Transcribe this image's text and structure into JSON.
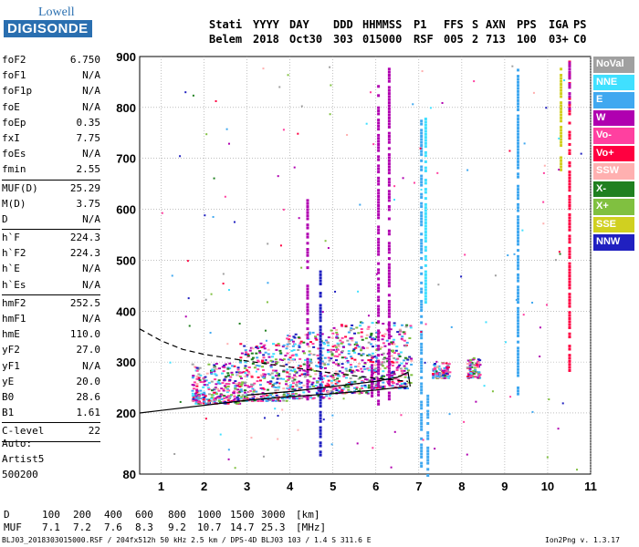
{
  "logo": {
    "top": "Lowell",
    "bottom": "DIGISONDE"
  },
  "header": {
    "labels": [
      "Stati",
      "YYYY",
      "DAY",
      "DDD",
      "HHMMSS",
      "P1",
      "FFS",
      "S",
      "AXN",
      "PPS",
      "IGA",
      "PS"
    ],
    "values": [
      "Belem",
      "2018",
      "Oct30",
      "303",
      "015000",
      "RSF",
      "005",
      "2",
      "713",
      "100",
      "03+",
      "C0"
    ]
  },
  "params_groups": [
    [
      [
        "foF2",
        "6.750"
      ],
      [
        "foF1",
        "N/A"
      ],
      [
        "foF1p",
        "N/A"
      ],
      [
        "foE",
        "N/A"
      ],
      [
        "foEp",
        "0.35"
      ],
      [
        "fxI",
        "7.75"
      ],
      [
        "foEs",
        "N/A"
      ],
      [
        "fmin",
        "2.55"
      ]
    ],
    [
      [
        "MUF(D)",
        "25.29"
      ],
      [
        "M(D)",
        "3.75"
      ],
      [
        "D",
        "N/A"
      ]
    ],
    [
      [
        "h`F",
        "224.3"
      ],
      [
        "h`F2",
        "224.3"
      ],
      [
        "h`E",
        "N/A"
      ],
      [
        "h`Es",
        "N/A"
      ]
    ],
    [
      [
        "hmF2",
        "252.5"
      ],
      [
        "hmF1",
        "N/A"
      ],
      [
        "hmE",
        "110.0"
      ],
      [
        "yF2",
        "27.0"
      ],
      [
        "yF1",
        "N/A"
      ],
      [
        "yE",
        "20.0"
      ],
      [
        "B0",
        "28.6"
      ],
      [
        "B1",
        "1.61"
      ]
    ],
    [
      [
        "C-level",
        "22"
      ]
    ]
  ],
  "auto": {
    "line1": "Auto:",
    "line2": "Artist5",
    "line3": "500200"
  },
  "legend": [
    {
      "label": "NoVal",
      "color": "#a0a0a0"
    },
    {
      "label": "NNE",
      "color": "#40e0ff"
    },
    {
      "label": "E",
      "color": "#40a8f0"
    },
    {
      "label": "W",
      "color": "#b000b0"
    },
    {
      "label": "Vo-",
      "color": "#ff40a0"
    },
    {
      "label": "Vo+",
      "color": "#ff0040"
    },
    {
      "label": "SSW",
      "color": "#ffb0b0"
    },
    {
      "label": "X-",
      "color": "#208020"
    },
    {
      "label": "X+",
      "color": "#80c040"
    },
    {
      "label": "SSE",
      "color": "#d0d020"
    },
    {
      "label": "NNW",
      "color": "#2020c0"
    }
  ],
  "muf_table": {
    "d_label": "D",
    "d_values": [
      "100",
      "200",
      "400",
      "600",
      "800",
      "1000",
      "1500",
      "3000"
    ],
    "d_unit": "[km]",
    "muf_label": "MUF",
    "muf_values": [
      "7.1",
      "7.2",
      "7.6",
      "8.3",
      "9.2",
      "10.7",
      "14.7",
      "25.3"
    ],
    "muf_unit": "[MHz]"
  },
  "footer": {
    "left": "BLJ03_2018303015000.RSF / 204fx512h 50 kHz 2.5 km / DPS-4D BLJ03 103 / 1.4 S 311.6 E",
    "right": "Ion2Png v. 1.3.17"
  },
  "chart_data": {
    "type": "scatter",
    "title": "",
    "xlabel": "",
    "ylabel": "",
    "xlim": [
      0.5,
      11
    ],
    "ylim": [
      80,
      900
    ],
    "x_ticks": [
      1,
      2,
      3,
      4,
      5,
      6,
      7,
      8,
      9,
      10,
      11
    ],
    "y_ticks": [
      80,
      200,
      300,
      400,
      500,
      600,
      700,
      800,
      900
    ],
    "grid": true,
    "legend_position": "right",
    "traces": [
      {
        "name": "trace-solid",
        "style": "solid",
        "points": [
          [
            0.5,
            200
          ],
          [
            1,
            205
          ],
          [
            2,
            215
          ],
          [
            3,
            225
          ],
          [
            4,
            232
          ],
          [
            5,
            238
          ],
          [
            6,
            245
          ],
          [
            6.75,
            252
          ]
        ]
      },
      {
        "name": "trace-dashed",
        "style": "dashed",
        "points": [
          [
            0.5,
            365
          ],
          [
            1,
            342
          ],
          [
            1.5,
            325
          ],
          [
            2,
            315
          ],
          [
            3,
            302
          ],
          [
            4,
            290
          ],
          [
            5,
            278
          ],
          [
            6,
            268
          ],
          [
            6.75,
            262
          ]
        ]
      },
      {
        "name": "trace-profile",
        "style": "solid",
        "points": [
          [
            3,
            235
          ],
          [
            4,
            242
          ],
          [
            5,
            252
          ],
          [
            6,
            262
          ],
          [
            6.5,
            270
          ],
          [
            6.75,
            280
          ],
          [
            6.8,
            252
          ]
        ]
      }
    ],
    "vertical_bands": [
      {
        "x": 4.4,
        "y0": 230,
        "y1": 620,
        "color": "#b000b0"
      },
      {
        "x": 4.7,
        "y0": 120,
        "y1": 480,
        "color": "#2020c0"
      },
      {
        "x": 5.9,
        "y0": 230,
        "y1": 300,
        "color": "#b000b0"
      },
      {
        "x": 6.05,
        "y0": 220,
        "y1": 860,
        "color": "#b000b0"
      },
      {
        "x": 6.3,
        "y0": 230,
        "y1": 880,
        "color": "#b000b0"
      },
      {
        "x": 7.05,
        "y0": 80,
        "y1": 780,
        "color": "#40a8f0"
      },
      {
        "x": 7.15,
        "y0": 420,
        "y1": 780,
        "color": "#40e0ff"
      },
      {
        "x": 7.2,
        "y0": 80,
        "y1": 240,
        "color": "#40a8f0"
      },
      {
        "x": 9.3,
        "y0": 240,
        "y1": 880,
        "color": "#40a8f0"
      },
      {
        "x": 10.3,
        "y0": 680,
        "y1": 880,
        "color": "#d0d020"
      },
      {
        "x": 10.5,
        "y0": 280,
        "y1": 900,
        "color": "#ff0040"
      },
      {
        "x": 10.5,
        "y0": 800,
        "y1": 900,
        "color": "#b000b0"
      }
    ],
    "clusters": [
      {
        "x0": 1.7,
        "x1": 2.8,
        "y0": 220,
        "y1": 300
      },
      {
        "x0": 2.8,
        "x1": 3.9,
        "y0": 225,
        "y1": 340
      },
      {
        "x0": 3.9,
        "x1": 4.9,
        "y0": 230,
        "y1": 360
      },
      {
        "x0": 4.9,
        "x1": 5.8,
        "y0": 240,
        "y1": 380
      },
      {
        "x0": 5.8,
        "x1": 6.8,
        "y0": 250,
        "y1": 380
      },
      {
        "x0": 7.3,
        "x1": 7.7,
        "y0": 270,
        "y1": 300
      },
      {
        "x0": 8.1,
        "x1": 8.4,
        "y0": 270,
        "y1": 310
      }
    ]
  }
}
